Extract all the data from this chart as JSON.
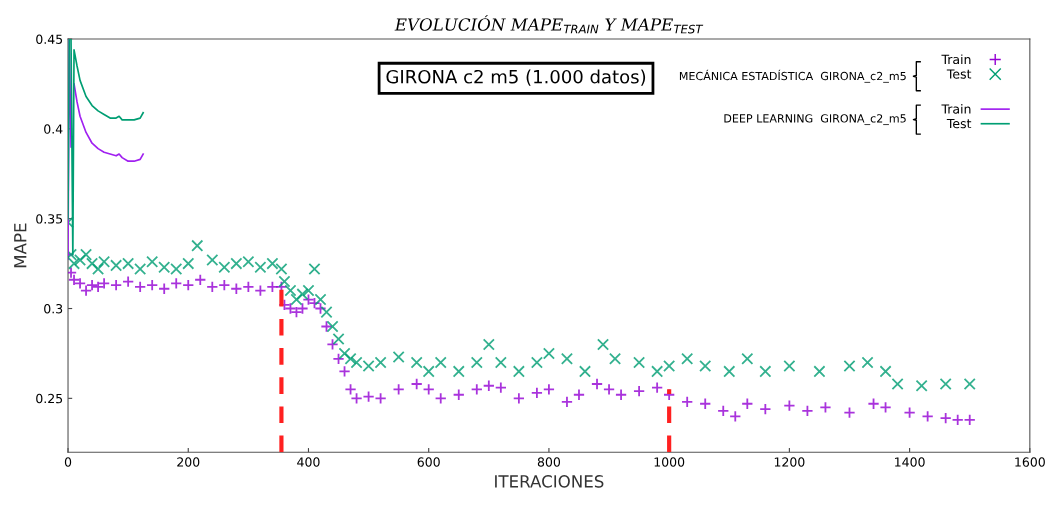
{
  "chart_data": {
    "type": "scatter",
    "title": "EVOLUCIÓN MAPE$_{TRAIN}$ Y MAPE$_{TEST}$",
    "xlabel": "ITERACIONES",
    "ylabel": "MAPE",
    "xlim": [
      0,
      1600
    ],
    "xticks": [
      0,
      200,
      400,
      600,
      800,
      1000,
      1200,
      1400,
      1600
    ],
    "ylim": [
      0.22,
      0.45
    ],
    "yticks": [
      0.25,
      0.3,
      0.35,
      0.4,
      0.45
    ],
    "grid": false,
    "legend": "top right",
    "annotations": [
      "GIRONA c2 m5 (1.000 datos)",
      "MECÁNICA ESTADÍSTICA  GIRONA_c2_m5",
      "DEEP LEARNING  GIRONA_c2_m5"
    ],
    "series": [
      {
        "name": "Train",
        "marker": "plus",
        "color": "#9400d3",
        "x": [
          0,
          5,
          10,
          20,
          30,
          40,
          50,
          60,
          80,
          100,
          120,
          140,
          160,
          180,
          200,
          220,
          240,
          260,
          280,
          300,
          320,
          340,
          355,
          360,
          370,
          380,
          390,
          400,
          410,
          420,
          430,
          440,
          450,
          460,
          470,
          480,
          500,
          520,
          550,
          580,
          600,
          620,
          650,
          680,
          700,
          720,
          750,
          780,
          800,
          830,
          850,
          880,
          900,
          920,
          950,
          980,
          1000,
          1030,
          1060,
          1090,
          1110,
          1130,
          1160,
          1200,
          1230,
          1260,
          1300,
          1340,
          1360,
          1400,
          1430,
          1460,
          1480,
          1500
        ],
        "values": [
          0.33,
          0.32,
          0.316,
          0.314,
          0.31,
          0.313,
          0.312,
          0.314,
          0.313,
          0.315,
          0.312,
          0.313,
          0.311,
          0.314,
          0.313,
          0.316,
          0.312,
          0.313,
          0.311,
          0.312,
          0.31,
          0.312,
          0.312,
          0.302,
          0.3,
          0.298,
          0.3,
          0.305,
          0.303,
          0.3,
          0.29,
          0.28,
          0.272,
          0.265,
          0.255,
          0.25,
          0.251,
          0.25,
          0.255,
          0.258,
          0.255,
          0.25,
          0.252,
          0.255,
          0.257,
          0.256,
          0.25,
          0.253,
          0.255,
          0.248,
          0.252,
          0.258,
          0.255,
          0.252,
          0.254,
          0.256,
          0.252,
          0.248,
          0.247,
          0.243,
          0.24,
          0.247,
          0.244,
          0.246,
          0.243,
          0.245,
          0.242,
          0.247,
          0.245,
          0.242,
          0.24,
          0.239,
          0.238,
          0.238
        ]
      },
      {
        "name": "Test",
        "marker": "cross",
        "color": "#009e73",
        "x": [
          0,
          5,
          10,
          20,
          30,
          40,
          50,
          60,
          80,
          100,
          120,
          140,
          160,
          180,
          200,
          215,
          240,
          260,
          280,
          300,
          320,
          340,
          355,
          360,
          370,
          380,
          390,
          400,
          410,
          420,
          430,
          440,
          450,
          460,
          470,
          480,
          500,
          520,
          550,
          580,
          600,
          620,
          650,
          680,
          700,
          720,
          750,
          780,
          800,
          830,
          860,
          890,
          910,
          950,
          980,
          1000,
          1030,
          1060,
          1100,
          1130,
          1160,
          1200,
          1250,
          1300,
          1330,
          1360,
          1380,
          1420,
          1460,
          1500
        ],
        "values": [
          0.348,
          0.33,
          0.325,
          0.327,
          0.33,
          0.325,
          0.322,
          0.326,
          0.324,
          0.325,
          0.322,
          0.326,
          0.323,
          0.322,
          0.325,
          0.335,
          0.327,
          0.323,
          0.325,
          0.326,
          0.323,
          0.325,
          0.322,
          0.315,
          0.31,
          0.305,
          0.308,
          0.31,
          0.322,
          0.305,
          0.298,
          0.29,
          0.283,
          0.275,
          0.272,
          0.27,
          0.268,
          0.27,
          0.273,
          0.27,
          0.265,
          0.27,
          0.265,
          0.27,
          0.28,
          0.27,
          0.265,
          0.27,
          0.275,
          0.272,
          0.265,
          0.28,
          0.272,
          0.27,
          0.265,
          0.268,
          0.272,
          0.268,
          0.265,
          0.272,
          0.265,
          0.268,
          0.265,
          0.268,
          0.27,
          0.265,
          0.258,
          0.257,
          0.258,
          0.258
        ]
      },
      {
        "name": "Train",
        "type": "line",
        "marker": "none",
        "line_style": "solid",
        "color": "#a020f0",
        "x": [
          0,
          2,
          5,
          8,
          10,
          15,
          20,
          30,
          40,
          50,
          60,
          70,
          80,
          85,
          90,
          100,
          110,
          120,
          125
        ],
        "values": [
          0.33,
          0.45,
          0.39,
          null,
          0.425,
          0.415,
          0.407,
          0.398,
          0.392,
          0.389,
          0.387,
          0.386,
          0.385,
          0.386,
          0.384,
          0.382,
          0.382,
          0.383,
          0.386
        ]
      },
      {
        "name": "Test",
        "type": "line",
        "marker": "none",
        "line_style": "solid",
        "color": "#009e73",
        "x": [
          0,
          2,
          5,
          8,
          10,
          15,
          20,
          30,
          40,
          50,
          60,
          70,
          80,
          85,
          90,
          100,
          110,
          120,
          125
        ],
        "values": [
          0.35,
          0.45,
          0.45,
          0.33,
          0.444,
          0.435,
          0.427,
          0.418,
          0.413,
          0.41,
          0.408,
          0.406,
          0.406,
          0.407,
          0.405,
          0.405,
          0.405,
          0.406,
          0.409
        ]
      },
      {
        "type": "line",
        "marker": "none",
        "line_style": "dashed",
        "color": "#ff2020",
        "x": [
          355,
          355
        ],
        "values": [
          0.22,
          0.311
        ]
      },
      {
        "type": "line",
        "marker": "none",
        "line_style": "dashed",
        "color": "#ff2020",
        "x": [
          1000,
          1000
        ],
        "values": [
          0.22,
          0.255
        ]
      }
    ]
  }
}
